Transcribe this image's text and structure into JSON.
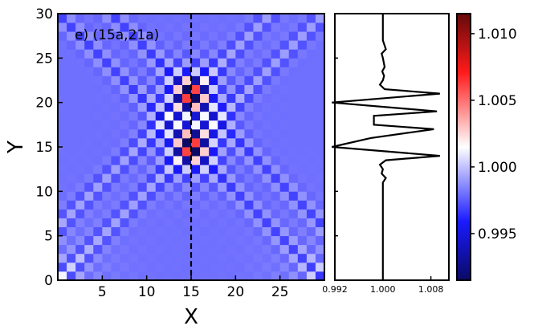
{
  "chart_data": [
    {
      "type": "heatmap",
      "title": "e) (15a,21a)",
      "xlabel": "X",
      "ylabel": "Y",
      "xlim": [
        0,
        30
      ],
      "ylim": [
        0,
        30
      ],
      "xticks": [
        5,
        10,
        15,
        20,
        25
      ],
      "yticks": [
        0,
        5,
        10,
        15,
        20,
        25,
        30
      ],
      "grid": false,
      "cut_line": {
        "axis": "x",
        "value": 15,
        "style": "dashed"
      },
      "impurities": [
        {
          "x": 15,
          "y": 15
        },
        {
          "x": 15,
          "y": 21
        }
      ],
      "background_value": 0.998,
      "pattern": "checkerboard density oscillations around two impurities with diagonal interference beams toward the corners"
    },
    {
      "type": "line",
      "title": "",
      "xlabel": "",
      "ylabel": "",
      "xlim": [
        0.992,
        1.011
      ],
      "ylim": [
        0,
        30
      ],
      "xticks": [
        0.992,
        1.0,
        1.008
      ],
      "xtick_labels": [
        "0.992",
        "1.000",
        "1.008"
      ],
      "series": [
        {
          "y": [
            30,
            29,
            28,
            27,
            26,
            25.5,
            25,
            24,
            23.5,
            23,
            22.5,
            22,
            21.5,
            21,
            20,
            19,
            18.5,
            17.5,
            17,
            16,
            15,
            14,
            13.5,
            13,
            12.5,
            12,
            11.5,
            11,
            10,
            9,
            8,
            7,
            6,
            5,
            4,
            3,
            2,
            1,
            0
          ],
          "x": [
            1.0,
            1.0,
            1.0,
            1.0,
            1.0005,
            0.9998,
            1.0,
            1.0003,
            0.9999,
            1.0002,
            1.0,
            0.9995,
            1.0003,
            1.0095,
            0.9915,
            1.009,
            0.9985,
            0.9985,
            1.0085,
            0.998,
            0.9915,
            1.0095,
            1.0005,
            0.9995,
            1.0,
            0.9998,
            1.0005,
            1.0,
            1.0,
            1.0,
            1.0,
            1.0,
            1.0,
            1.0,
            1.0,
            1.0,
            1.0,
            1.0,
            1.0
          ]
        }
      ]
    },
    {
      "type": "colorbar",
      "range": [
        0.9915,
        1.0115
      ],
      "ticks": [
        0.995,
        1.0,
        1.005,
        1.01
      ],
      "tick_labels": [
        "0.995",
        "1.000",
        "1.005",
        "1.010"
      ],
      "colors": [
        "#0a0a64",
        "#1a1aff",
        "#ffffff",
        "#ff1a1a",
        "#640a0a"
      ]
    }
  ]
}
